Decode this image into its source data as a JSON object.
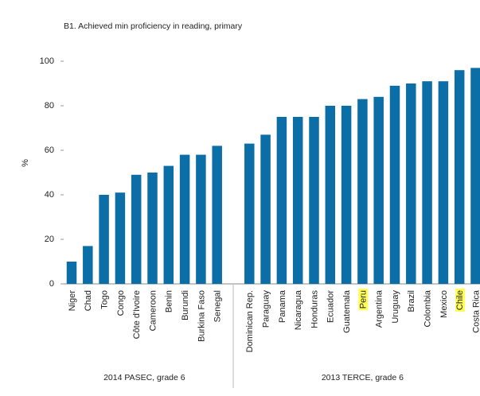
{
  "chart_data": {
    "type": "bar",
    "title": "B1. Achieved min proficiency in reading, primary",
    "y_label": "%",
    "ylim": [
      0,
      100
    ],
    "yticks": [
      0,
      20,
      40,
      60,
      80,
      100
    ],
    "color": "#0b6ea6",
    "highlight_color": "#ffff55",
    "groups": [
      {
        "label": "2014 PASEC, grade 6",
        "categories": [
          "Niger",
          "Chad",
          "Togo",
          "Congo",
          "Côte d'Ivoire",
          "Cameroon",
          "Benin",
          "Burundi",
          "Burkina Faso",
          "Senegal"
        ],
        "values": [
          10,
          17,
          40,
          41,
          49,
          50,
          53,
          58,
          58,
          62
        ],
        "highlight": []
      },
      {
        "label": "2013 TERCE, grade 6",
        "categories": [
          "Dominican Rep.",
          "Paraguay",
          "Panama",
          "Nicaragua",
          "Honduras",
          "Ecuador",
          "Guatemala",
          "Peru",
          "Argentina",
          "Uruguay",
          "Brazil",
          "Colombia",
          "Mexico",
          "Chile",
          "Costa Rica"
        ],
        "values": [
          63,
          67,
          75,
          75,
          75,
          80,
          80,
          83,
          84,
          89,
          90,
          91,
          91,
          96,
          97
        ],
        "highlight": [
          7,
          13
        ]
      }
    ]
  }
}
